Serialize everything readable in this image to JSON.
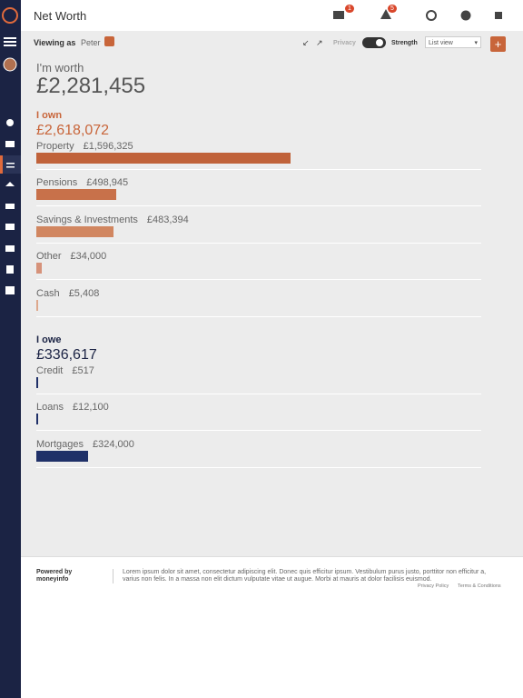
{
  "header": {
    "title": "Net Worth",
    "message_badge": "1",
    "alert_badge": "5"
  },
  "toolbar": {
    "viewing_as": "Viewing as",
    "user": "Peter",
    "privacy": "Privacy",
    "strength": "Strength",
    "view_select": "List view"
  },
  "summary": {
    "label": "I'm worth",
    "total": "£2,281,455"
  },
  "own": {
    "heading": "I own",
    "total": "£2,618,072",
    "colors": [
      "#c0623a",
      "#c8714a",
      "#d18660",
      "#d6927a",
      "#dda88c"
    ],
    "items": [
      {
        "name": "Property",
        "value": 1596325,
        "label": "£1,596,325"
      },
      {
        "name": "Pensions",
        "value": 498945,
        "label": "£498,945"
      },
      {
        "name": "Savings & Investments",
        "value": 483394,
        "label": "£483,394"
      },
      {
        "name": "Other",
        "value": 34000,
        "label": "£34,000"
      },
      {
        "name": "Cash",
        "value": 5408,
        "label": "£5,408"
      }
    ]
  },
  "owe": {
    "heading": "I owe",
    "total": "£336,617",
    "color": "#1f3068",
    "items": [
      {
        "name": "Credit",
        "value": 517,
        "label": "£517"
      },
      {
        "name": "Loans",
        "value": 12100,
        "label": "£12,100"
      },
      {
        "name": "Mortgages",
        "value": 324000,
        "label": "£324,000"
      }
    ]
  },
  "footer": {
    "powered": "Powered by",
    "brand": "moneyinfo",
    "text": "Lorem ipsum dolor sit amet, consectetur adipiscing elit. Donec quis efficitur ipsum. Vestibulum purus justo, porttitor non efficitur a, varius non felis. In a massa non elit dictum vulputate vitae ut augue. Morbi at mauris at dolor facilisis euismod.",
    "privacy": "Privacy Policy",
    "terms": "Terms & Conditions"
  }
}
